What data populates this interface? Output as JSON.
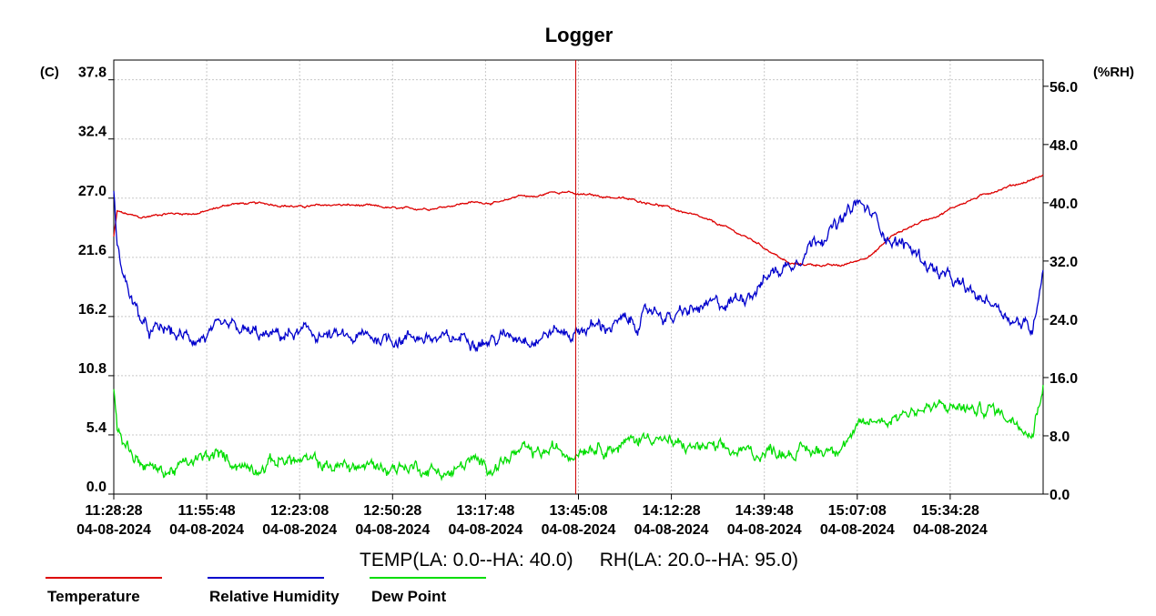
{
  "chart_data": {
    "type": "line",
    "title": "Logger",
    "y_left_unit": "(C)",
    "y_right_unit": "(%RH)",
    "ylim_left": [
      0.0,
      39.6
    ],
    "ylim_right": [
      0.0,
      59.6
    ],
    "y_left_ticks": [
      "0.0",
      "5.4",
      "10.8",
      "16.2",
      "21.6",
      "27.0",
      "32.4",
      "37.8"
    ],
    "y_right_ticks": [
      "0.0",
      "8.0",
      "16.0",
      "24.0",
      "32.0",
      "40.0",
      "48.0",
      "56.0"
    ],
    "x_time_labels": [
      "11:28:28",
      "11:55:48",
      "12:23:08",
      "12:50:28",
      "13:17:48",
      "13:45:08",
      "14:12:28",
      "14:39:48",
      "15:07:08",
      "15:34:28"
    ],
    "x_date_labels": [
      "04-08-2024",
      "04-08-2024",
      "04-08-2024",
      "04-08-2024",
      "04-08-2024",
      "04-08-2024",
      "04-08-2024",
      "04-08-2024",
      "04-08-2024",
      "04-08-2024"
    ],
    "xlabel": "TEMP(LA: 0.0--HA: 40.0)     RH(LA: 20.0--HA: 95.0)",
    "x_minutes_range": [
      0,
      275
    ],
    "marker_minute": 136.7,
    "grid": true,
    "legend_position": "bottom-left",
    "series": [
      {
        "name": "Temperature",
        "axis": "left",
        "color": "#dd0000",
        "x": [
          0,
          1,
          3,
          8,
          15,
          25,
          35,
          45,
          55,
          65,
          75,
          85,
          95,
          105,
          115,
          120,
          125,
          130,
          134,
          137,
          140,
          150,
          160,
          170,
          180,
          190,
          200,
          210,
          215,
          220,
          225,
          230,
          235,
          240,
          245,
          250,
          255,
          260,
          265,
          270,
          275
        ],
        "values": [
          23.5,
          25.8,
          25.6,
          25.2,
          25.6,
          25.6,
          26.5,
          26.5,
          26.2,
          26.4,
          26.3,
          26.0,
          26.1,
          26.6,
          26.6,
          27.3,
          27.1,
          27.6,
          27.6,
          27.3,
          27.3,
          27.0,
          26.5,
          25.6,
          24.5,
          23.0,
          21.0,
          20.9,
          20.8,
          21.3,
          22.0,
          23.5,
          24.3,
          25.0,
          25.6,
          26.4,
          27.0,
          27.6,
          28.1,
          28.5,
          29.1
        ]
      },
      {
        "name": "Relative Humidity",
        "axis": "right",
        "color": "#0000cc",
        "x": [
          0,
          1,
          3,
          6,
          10,
          15,
          20,
          25,
          30,
          35,
          40,
          45,
          50,
          55,
          60,
          65,
          70,
          75,
          80,
          85,
          90,
          95,
          100,
          105,
          110,
          115,
          120,
          125,
          130,
          135,
          140,
          145,
          150,
          155,
          160,
          165,
          170,
          175,
          180,
          185,
          190,
          195,
          200,
          205,
          210,
          215,
          220,
          225,
          230,
          235,
          240,
          245,
          250,
          255,
          260,
          265,
          270,
          272,
          275
        ],
        "values": [
          42.0,
          34.0,
          30.0,
          26.0,
          22.0,
          22.5,
          21.5,
          21.5,
          22.0,
          22.5,
          22.0,
          21.5,
          21.8,
          22.0,
          22.0,
          21.5,
          21.2,
          21.5,
          21.5,
          21.5,
          21.8,
          21.2,
          21.0,
          22.0,
          21.0,
          21.5,
          22.0,
          21.5,
          22.5,
          22.0,
          23.0,
          23.0,
          23.5,
          23.5,
          25.5,
          24.0,
          25.0,
          25.5,
          26.0,
          27.0,
          28.5,
          30.5,
          31.5,
          34.0,
          36.0,
          37.0,
          40.0,
          38.0,
          35.0,
          34.0,
          32.0,
          30.0,
          28.5,
          27.0,
          26.5,
          24.5,
          23.0,
          22.5,
          32.0
        ]
      },
      {
        "name": "Dew Point",
        "axis": "left",
        "color": "#00dd00",
        "x": [
          0,
          1,
          3,
          6,
          10,
          15,
          20,
          25,
          30,
          35,
          40,
          45,
          50,
          55,
          60,
          65,
          70,
          75,
          80,
          85,
          90,
          95,
          100,
          105,
          110,
          115,
          120,
          125,
          130,
          135,
          140,
          145,
          150,
          155,
          160,
          165,
          170,
          175,
          180,
          185,
          190,
          195,
          200,
          205,
          210,
          215,
          220,
          225,
          230,
          235,
          240,
          245,
          250,
          255,
          260,
          265,
          270,
          272,
          275
        ],
        "values": [
          9.5,
          6.0,
          5.0,
          3.5,
          2.5,
          2.0,
          2.5,
          3.0,
          3.5,
          3.0,
          2.5,
          2.8,
          3.2,
          3.0,
          2.8,
          2.5,
          2.5,
          2.5,
          2.5,
          2.5,
          2.5,
          2.2,
          1.8,
          3.0,
          2.5,
          3.0,
          3.8,
          3.5,
          4.0,
          3.8,
          4.6,
          4.5,
          4.4,
          5.0,
          5.5,
          4.5,
          4.2,
          4.3,
          3.8,
          3.8,
          3.7,
          4.0,
          4.0,
          3.8,
          4.0,
          4.7,
          5.7,
          6.7,
          7.0,
          7.6,
          7.8,
          7.8,
          8.0,
          7.6,
          7.8,
          7.0,
          6.5,
          5.8,
          10.5
        ]
      }
    ]
  }
}
